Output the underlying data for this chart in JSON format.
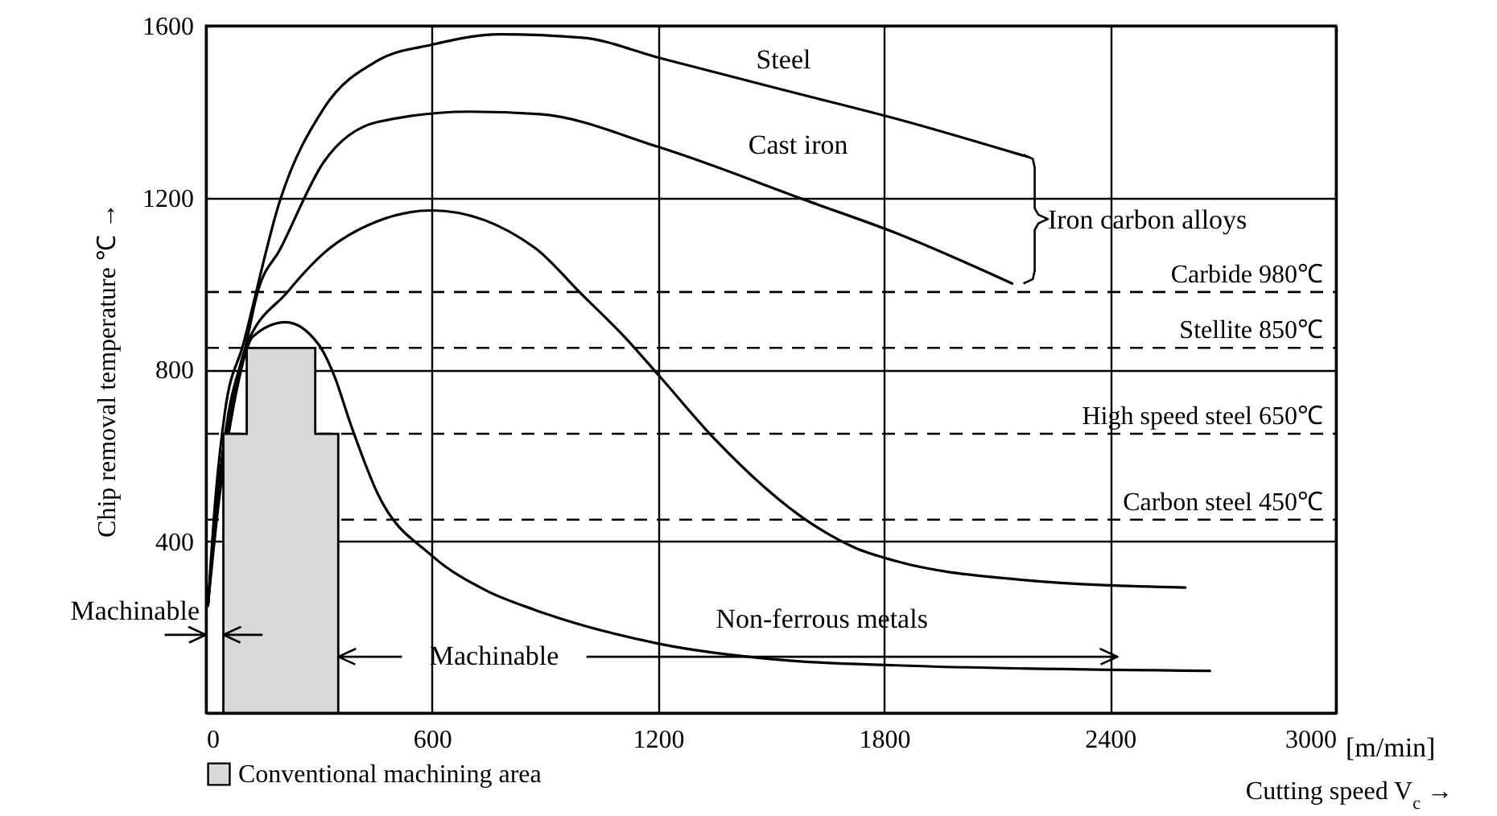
{
  "chart_data": {
    "type": "line",
    "xlabel": "Cutting speed V$_{c}$ →",
    "ylabel": "Chip removal temperature ℃ →",
    "xlim": [
      0,
      3000
    ],
    "ylim": [
      0,
      1600
    ],
    "xticks": [
      0,
      600,
      1200,
      1800,
      2400,
      3000
    ],
    "yticks": [
      {
        "value": 0,
        "label": null
      },
      400,
      800,
      1200,
      1600
    ],
    "grid": true,
    "legend": "bottom left",
    "series": [
      {
        "color": "#000000",
        "x": [
          5,
          25,
          50,
          99,
          197,
          312,
          456,
          600,
          780,
          1000,
          1204,
          1535,
          1830,
          2180
        ],
        "values": [
          250,
          500,
          700,
          859,
          1195,
          1407,
          1519,
          1556,
          1580,
          1572,
          1525,
          1450,
          1384,
          1295
        ]
      },
      {
        "color": "#000000",
        "x": [
          5,
          30,
          60,
          103,
          137,
          197,
          312,
          456,
          700,
          887,
          1204,
          1607,
          1830,
          2140
        ],
        "values": [
          250,
          500,
          700,
          846,
          980,
          1080,
          1282,
          1376,
          1400,
          1394,
          1317,
          1189,
          1118,
          1000
        ]
      },
      {
        "color": "#000000",
        "x": [
          5,
          30,
          65,
          103,
          216,
          312,
          456,
          600,
          873,
          995,
          1103,
          1204,
          1348,
          1607,
          1722,
          1830,
          2168,
          2600
        ],
        "values": [
          250,
          500,
          700,
          846,
          980,
          1070,
          1145,
          1170,
          1083,
          977,
          883,
          784,
          640,
          441,
          385,
          354,
          310,
          292
        ]
      },
      {
        "color": "#000000",
        "x": [
          5,
          35,
          70,
          125,
          211,
          298,
          341,
          384,
          456,
          600,
          744,
          873,
          1204,
          1535,
          1830,
          2665
        ],
        "values": [
          250,
          500,
          700,
          877,
          910,
          859,
          784,
          672,
          510,
          366,
          285,
          240,
          161,
          123,
          111,
          98
        ]
      },
      {
        "type": "area",
        "name": "Conventional machining area",
        "color": "#d9d9d9",
        "x": [
          46,
          108,
          290,
          351
        ],
        "values": [
          650,
          850,
          650,
          650
        ]
      }
    ],
    "ref_lines": [
      {
        "axis": "y",
        "value": 980,
        "label": "Carbide 980℃",
        "line_style": "dashed"
      },
      {
        "axis": "y",
        "value": 850,
        "label": "Stellite 850℃",
        "line_style": "dashed"
      },
      {
        "axis": "y",
        "value": 650,
        "label": "High speed steel 650℃",
        "line_style": "dashed"
      },
      {
        "axis": "y",
        "value": 450,
        "label": "Carbon steel 450℃",
        "line_style": "dashed"
      }
    ],
    "annotations": [
      "Steel",
      "Cast iron",
      "Iron carbon alloys",
      "Non-ferrous metals",
      "Machinable",
      "Machinable",
      "[m/min]"
    ]
  }
}
